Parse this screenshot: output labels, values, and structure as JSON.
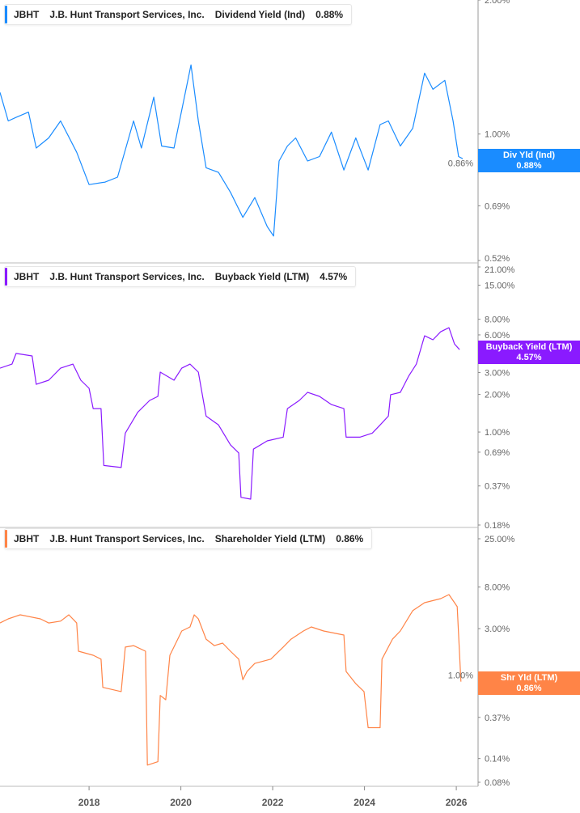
{
  "chart_data": [
    {
      "type": "line",
      "ticker": "JBHT",
      "company": "J.B. Hunt Transport Services, Inc.",
      "metric": "Dividend Yield (Ind)",
      "current_value": "0.88%",
      "tag_label": "Div Yld (Ind)",
      "tag_value": "0.88%",
      "color": "#1a8cff",
      "y_scale": "log",
      "ylim": [
        0.52,
        2.0
      ],
      "y_ticks": [
        "2.00%",
        "1.00%",
        "0.86%",
        "0.69%",
        "0.52%"
      ],
      "y_tick_values": [
        2.0,
        1.0,
        0.86,
        0.69,
        0.52
      ],
      "x": [
        2016.06,
        2016.24,
        2016.41,
        2016.68,
        2016.85,
        2017.12,
        2017.38,
        2017.73,
        2018.0,
        2018.35,
        2018.62,
        2018.97,
        2019.14,
        2019.41,
        2019.58,
        2019.85,
        2020.22,
        2020.38,
        2020.55,
        2020.82,
        2021.08,
        2021.35,
        2021.61,
        2021.88,
        2022.02,
        2022.14,
        2022.32,
        2022.5,
        2022.76,
        2023.02,
        2023.28,
        2023.55,
        2023.81,
        2024.08,
        2024.34,
        2024.52,
        2024.78,
        2025.05,
        2025.31,
        2025.49,
        2025.75,
        2025.93,
        2026.05,
        2026.14
      ],
      "values": [
        1.24,
        1.07,
        1.09,
        1.12,
        0.93,
        0.98,
        1.07,
        0.91,
        0.77,
        0.78,
        0.8,
        1.07,
        0.93,
        1.21,
        0.94,
        0.93,
        1.43,
        1.07,
        0.84,
        0.82,
        0.74,
        0.65,
        0.72,
        0.62,
        0.59,
        0.87,
        0.94,
        0.98,
        0.87,
        0.89,
        1.01,
        0.83,
        0.98,
        0.83,
        1.05,
        1.07,
        0.94,
        1.03,
        1.37,
        1.26,
        1.32,
        1.07,
        0.89,
        0.88
      ]
    },
    {
      "type": "line",
      "ticker": "JBHT",
      "company": "J.B. Hunt Transport Services, Inc.",
      "metric": "Buyback Yield (LTM)",
      "current_value": "4.57%",
      "tag_label": "Buyback Yield (LTM)",
      "tag_value": "4.57%",
      "color": "#8a1aff",
      "y_scale": "log",
      "ylim": [
        0.18,
        21.0
      ],
      "y_ticks": [
        "21.00%",
        "15.00%",
        "8.00%",
        "6.00%",
        "3.00%",
        "2.00%",
        "1.00%",
        "0.69%",
        "0.37%",
        "0.18%"
      ],
      "y_tick_values": [
        21,
        15,
        8,
        6,
        3,
        2,
        1,
        0.69,
        0.37,
        0.18
      ],
      "x": [
        2016.06,
        2016.32,
        2016.41,
        2016.76,
        2016.85,
        2017.12,
        2017.38,
        2017.65,
        2017.82,
        2018.0,
        2018.09,
        2018.26,
        2018.32,
        2018.7,
        2018.79,
        2019.06,
        2019.32,
        2019.5,
        2019.55,
        2019.85,
        2020.02,
        2020.2,
        2020.38,
        2020.55,
        2020.82,
        2021.08,
        2021.26,
        2021.31,
        2021.52,
        2021.58,
        2021.88,
        2022.23,
        2022.32,
        2022.58,
        2022.76,
        2023.02,
        2023.28,
        2023.55,
        2023.6,
        2023.9,
        2024.17,
        2024.34,
        2024.52,
        2024.57,
        2024.78,
        2024.96,
        2025.13,
        2025.31,
        2025.49,
        2025.66,
        2025.84,
        2025.96,
        2026.07
      ],
      "values": [
        3.25,
        3.5,
        4.26,
        4.07,
        2.41,
        2.6,
        3.25,
        3.5,
        2.6,
        2.24,
        1.54,
        1.54,
        0.54,
        0.52,
        0.98,
        1.44,
        1.79,
        1.93,
        3.02,
        2.6,
        3.25,
        3.5,
        3.02,
        1.34,
        1.14,
        0.79,
        0.68,
        0.3,
        0.29,
        0.73,
        0.85,
        0.91,
        1.54,
        1.79,
        2.08,
        1.93,
        1.66,
        1.54,
        0.91,
        0.91,
        0.98,
        1.14,
        1.34,
        1.99,
        2.08,
        2.8,
        3.5,
        5.9,
        5.48,
        6.36,
        6.85,
        5.08,
        4.57
      ]
    },
    {
      "type": "line",
      "ticker": "JBHT",
      "company": "J.B. Hunt Transport Services, Inc.",
      "metric": "Shareholder Yield (LTM)",
      "current_value": "0.86%",
      "tag_label": "Shr Yld (LTM)",
      "tag_value": "0.86%",
      "color": "#ff8447",
      "y_scale": "log",
      "ylim": [
        0.08,
        25.0
      ],
      "y_ticks": [
        "25.00%",
        "8.00%",
        "3.00%",
        "1.00%",
        "0.37%",
        "0.14%",
        "0.08%"
      ],
      "y_tick_values": [
        25,
        8,
        3,
        1,
        0.37,
        0.14,
        0.08
      ],
      "x": [
        2016.06,
        2016.24,
        2016.5,
        2016.94,
        2017.12,
        2017.38,
        2017.56,
        2017.73,
        2017.77,
        2018.09,
        2018.26,
        2018.3,
        2018.7,
        2018.79,
        2018.97,
        2019.23,
        2019.27,
        2019.5,
        2019.55,
        2019.67,
        2019.76,
        2020.02,
        2020.2,
        2020.29,
        2020.38,
        2020.55,
        2020.73,
        2020.91,
        2021.08,
        2021.26,
        2021.35,
        2021.44,
        2021.61,
        2021.96,
        2022.23,
        2022.4,
        2022.67,
        2022.84,
        2023.11,
        2023.55,
        2023.6,
        2023.81,
        2023.99,
        2024.08,
        2024.34,
        2024.38,
        2024.61,
        2024.78,
        2025.05,
        2025.31,
        2025.66,
        2025.84,
        2026.02,
        2026.1
      ],
      "values": [
        3.43,
        3.78,
        4.16,
        3.78,
        3.43,
        3.58,
        4.16,
        3.43,
        1.76,
        1.6,
        1.46,
        0.75,
        0.68,
        1.94,
        2.01,
        1.76,
        0.12,
        0.13,
        0.62,
        0.56,
        1.6,
        2.84,
        3.12,
        4.16,
        3.78,
        2.34,
        2.01,
        2.13,
        1.76,
        1.46,
        0.9,
        1.09,
        1.32,
        1.46,
        1.94,
        2.34,
        2.84,
        3.12,
        2.84,
        2.58,
        1.09,
        0.82,
        0.68,
        0.29,
        0.29,
        1.46,
        2.34,
        2.84,
        4.58,
        5.54,
        6.09,
        6.7,
        5.04,
        0.86
      ]
    }
  ],
  "x_axis": {
    "ticks": [
      "2018",
      "2020",
      "2022",
      "2024",
      "2026"
    ],
    "tick_values": [
      2018,
      2020,
      2022,
      2024,
      2026
    ]
  }
}
